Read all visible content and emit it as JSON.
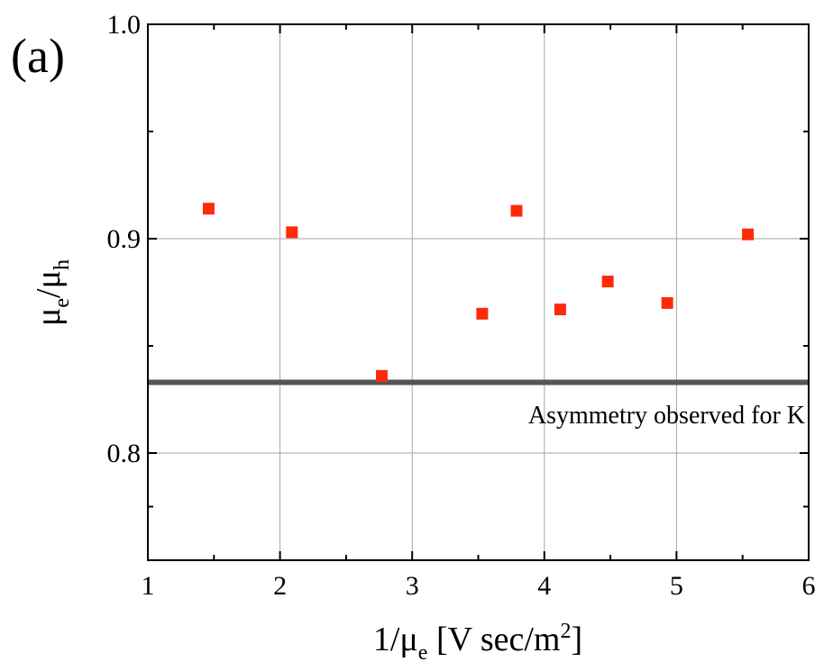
{
  "panel_label": "(a)",
  "annotation": "Asymmetry observed for K",
  "xlabel": {
    "main": "1/μ",
    "sub": "e",
    "unit": " [V sec/m",
    "sup": "2",
    "close": "]"
  },
  "ylabel": {
    "num": "μ",
    "num_sub": "e",
    "slash": "/μ",
    "den_sub": "h"
  },
  "chart_data": {
    "type": "scatter",
    "xlim": [
      1,
      6
    ],
    "ylim": [
      0.75,
      1.0
    ],
    "x_ticks": [
      1,
      2,
      3,
      4,
      5,
      6
    ],
    "x_tick_labels": [
      "1",
      "2",
      "3",
      "4",
      "5",
      "6"
    ],
    "y_ticks": [
      0.8,
      0.9,
      1.0
    ],
    "y_tick_labels": [
      "0.8",
      "0.9",
      "1.0"
    ],
    "grid": true,
    "marker_color": "#ff2a0a",
    "points": [
      {
        "x": 1.46,
        "y": 0.914
      },
      {
        "x": 2.09,
        "y": 0.903
      },
      {
        "x": 2.77,
        "y": 0.836
      },
      {
        "x": 3.53,
        "y": 0.865
      },
      {
        "x": 3.79,
        "y": 0.913
      },
      {
        "x": 4.12,
        "y": 0.867
      },
      {
        "x": 4.48,
        "y": 0.88
      },
      {
        "x": 4.93,
        "y": 0.87
      },
      {
        "x": 5.54,
        "y": 0.902
      }
    ],
    "reference_line": {
      "y": 0.833,
      "color": "#555555",
      "label": "Asymmetry observed for K"
    }
  }
}
